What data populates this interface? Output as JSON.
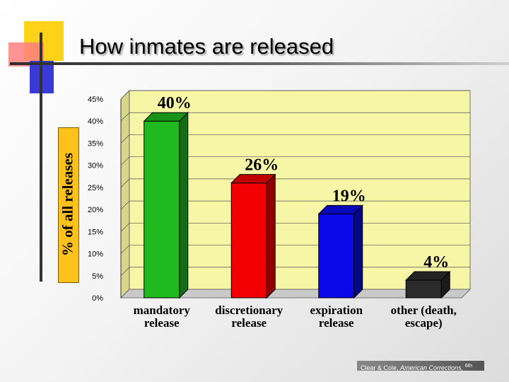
{
  "slide": {
    "title": "How inmates are released",
    "footer": {
      "authors": "Clear & Cole,",
      "book": "American Corrections,",
      "edition": "6th"
    }
  },
  "colors": {
    "plot_background": "#f7f5a6",
    "ylabel_box": "#ffc21c",
    "bars": [
      "#1fb81f",
      "#f00000",
      "#0a0ae8",
      "#2b2b2b"
    ]
  },
  "chart_data": {
    "type": "bar",
    "style": "3d",
    "ylabel": "% of all releases",
    "xlabel": "",
    "ylim": [
      0,
      45
    ],
    "yticks": [
      "0%",
      "5%",
      "10%",
      "15%",
      "20%",
      "25%",
      "30%",
      "35%",
      "40%",
      "45%"
    ],
    "grid": true,
    "categories": [
      [
        "mandatory",
        "release"
      ],
      [
        "discretionary",
        "release"
      ],
      [
        "expiration",
        "release"
      ],
      [
        "other (death,",
        "escape)"
      ]
    ],
    "values": [
      40,
      26,
      19,
      4
    ],
    "data_labels": [
      "40%",
      "26%",
      "19%",
      "4%"
    ]
  }
}
